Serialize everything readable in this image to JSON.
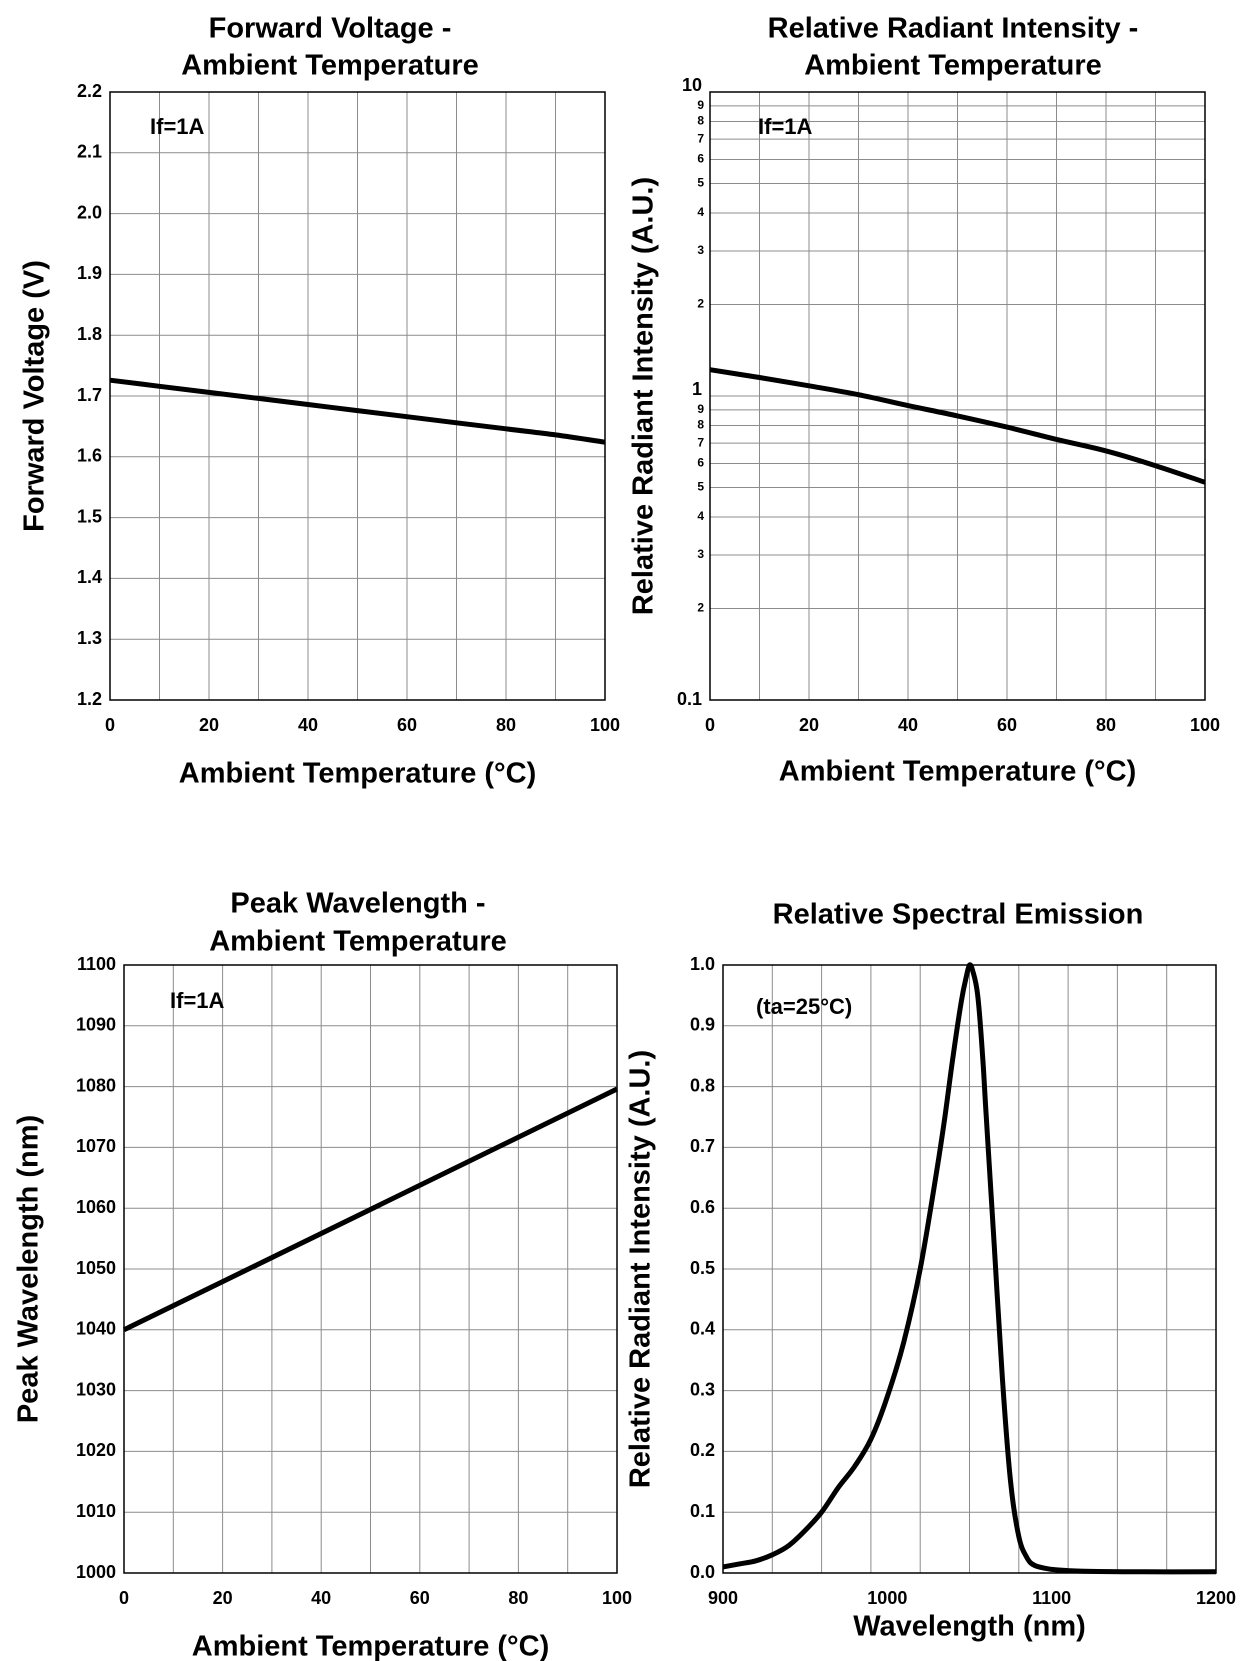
{
  "chart_data": [
    {
      "type": "line",
      "title": [
        "Forward Voltage -",
        "Ambient Temperature"
      ],
      "xlabel": "Ambient Temperature (°C)",
      "ylabel": "Forward Voltage (V)",
      "xlim": [
        0,
        100
      ],
      "ylim": [
        1.2,
        2.2
      ],
      "xscale": "linear",
      "yscale": "linear",
      "x_ticks": [
        "0",
        "20",
        "40",
        "60",
        "80",
        "100"
      ],
      "y_ticks": [
        "1.2",
        "1.3",
        "1.4",
        "1.5",
        "1.6",
        "1.7",
        "1.8",
        "1.9",
        "2.0",
        "2.1",
        "2.2"
      ],
      "grid": true,
      "annotation": "If=1A",
      "series": [
        {
          "x": [
            0,
            10,
            20,
            30,
            40,
            50,
            60,
            70,
            80,
            90,
            100
          ],
          "y": [
            1.726,
            1.716,
            1.706,
            1.696,
            1.686,
            1.676,
            1.666,
            1.656,
            1.646,
            1.636,
            1.624
          ]
        }
      ]
    },
    {
      "type": "line",
      "title": [
        "Relative Radiant Intensity -",
        "Ambient Temperature"
      ],
      "xlabel": "Ambient Temperature (°C)",
      "ylabel": "Relative Radiant Intensity (A.U.)",
      "xlim": [
        0,
        100
      ],
      "ylim": [
        0.1,
        10
      ],
      "xscale": "linear",
      "yscale": "log",
      "x_ticks": [
        "0",
        "20",
        "40",
        "60",
        "80",
        "100"
      ],
      "y_ticks_major": [
        {
          "v": 0.1,
          "t": "0.1"
        },
        {
          "v": 1,
          "t": "1"
        },
        {
          "v": 10,
          "t": "10"
        }
      ],
      "y_ticks_minor": [
        {
          "v": 0.2,
          "t": "2"
        },
        {
          "v": 0.3,
          "t": "3"
        },
        {
          "v": 0.4,
          "t": "4"
        },
        {
          "v": 0.5,
          "t": "5"
        },
        {
          "v": 0.6,
          "t": "6"
        },
        {
          "v": 0.7,
          "t": "7"
        },
        {
          "v": 0.8,
          "t": "8"
        },
        {
          "v": 0.9,
          "t": "9"
        },
        {
          "v": 2,
          "t": "2"
        },
        {
          "v": 3,
          "t": "3"
        },
        {
          "v": 4,
          "t": "4"
        },
        {
          "v": 5,
          "t": "5"
        },
        {
          "v": 6,
          "t": "6"
        },
        {
          "v": 7,
          "t": "7"
        },
        {
          "v": 8,
          "t": "8"
        },
        {
          "v": 9,
          "t": "9"
        }
      ],
      "grid": true,
      "annotation": "If=1A",
      "series": [
        {
          "x": [
            0,
            10,
            20,
            30,
            40,
            50,
            60,
            70,
            80,
            90,
            100
          ],
          "y": [
            1.22,
            1.15,
            1.08,
            1.01,
            0.93,
            0.86,
            0.79,
            0.72,
            0.66,
            0.59,
            0.52
          ]
        }
      ]
    },
    {
      "type": "line",
      "title": [
        "Peak Wavelength -",
        "Ambient Temperature"
      ],
      "xlabel": "Ambient Temperature (°C)",
      "ylabel": "Peak Wavelength (nm)",
      "xlim": [
        0,
        100
      ],
      "ylim": [
        1000,
        1100
      ],
      "xscale": "linear",
      "yscale": "linear",
      "x_ticks": [
        "0",
        "20",
        "40",
        "60",
        "80",
        "100"
      ],
      "y_ticks": [
        "1000",
        "1010",
        "1020",
        "1030",
        "1040",
        "1050",
        "1060",
        "1070",
        "1080",
        "1090",
        "1100"
      ],
      "grid": true,
      "annotation": "If=1A",
      "series": [
        {
          "x": [
            0,
            100
          ],
          "y": [
            1040,
            1079.6
          ]
        }
      ]
    },
    {
      "type": "line",
      "title": [
        "Relative Spectral Emission"
      ],
      "xlabel": "Wavelength (nm)",
      "ylabel": "Relative Radiant Intensity (A.U.)",
      "xlim": [
        900,
        1200
      ],
      "ylim": [
        0,
        1
      ],
      "xscale": "linear",
      "yscale": "linear",
      "x_ticks": [
        "900",
        "1000",
        "1100",
        "1200"
      ],
      "y_ticks": [
        "0.0",
        "0.1",
        "0.2",
        "0.3",
        "0.4",
        "0.5",
        "0.6",
        "0.7",
        "0.8",
        "0.9",
        "1.0"
      ],
      "grid": true,
      "annotation": "(ta=25°C)",
      "series": [
        {
          "x": [
            900,
            910,
            920,
            930,
            940,
            950,
            960,
            970,
            980,
            990,
            1000,
            1010,
            1020,
            1030,
            1035,
            1040,
            1045,
            1048,
            1050,
            1052,
            1055,
            1058,
            1060,
            1065,
            1070,
            1075,
            1080,
            1085,
            1090,
            1100,
            1110,
            1120,
            1150,
            1200
          ],
          "y": [
            0.01,
            0.015,
            0.02,
            0.03,
            0.045,
            0.07,
            0.1,
            0.14,
            0.175,
            0.22,
            0.29,
            0.38,
            0.5,
            0.66,
            0.75,
            0.85,
            0.94,
            0.98,
            1.0,
            0.99,
            0.95,
            0.85,
            0.76,
            0.54,
            0.32,
            0.15,
            0.06,
            0.025,
            0.012,
            0.006,
            0.004,
            0.003,
            0.002,
            0.002
          ]
        }
      ]
    }
  ]
}
